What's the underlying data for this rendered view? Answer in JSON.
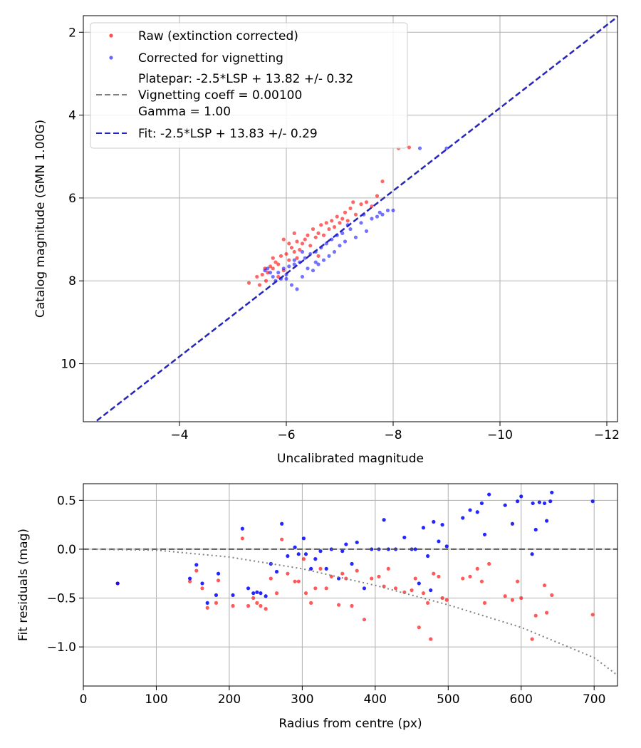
{
  "chart_data": [
    {
      "type": "scatter",
      "xlabel": "Uncalibrated magnitude",
      "ylabel": "Catalog magnitude (GMN 1.00G)",
      "xlim": [
        -2.2,
        -12.2
      ],
      "ylim": [
        11.4,
        1.6
      ],
      "grid": true,
      "xticks": [
        -4,
        -6,
        -8,
        -10,
        -12
      ],
      "xtick_labels": [
        "−4",
        "−6",
        "−8",
        "−10",
        "−12"
      ],
      "yticks": [
        2,
        4,
        6,
        8,
        10
      ],
      "ytick_labels": [
        "2",
        "4",
        "6",
        "8",
        "10"
      ],
      "legend_position": "top-left",
      "legend": [
        {
          "label": "Raw (extinction corrected)",
          "marker": "dot",
          "color": "#ff0000"
        },
        {
          "label": "Corrected for vignetting",
          "marker": "dot",
          "color": "#0000ff"
        },
        {
          "label": [
            "Platepar: -2.5*LSP + 13.82 +/- 0.32",
            "Vignetting coeff = 0.00100",
            "Gamma = 1.00"
          ],
          "marker": "dashed-line",
          "color": "#7f7f7f"
        },
        {
          "label": "Fit: -2.5*LSP + 13.83 +/- 0.29",
          "marker": "dashed-line",
          "color": "#2222cc"
        }
      ],
      "lines": [
        {
          "name": "Platepar",
          "slope": 1.0,
          "intercept": 13.82,
          "color": "#7f7f7f"
        },
        {
          "name": "Fit",
          "slope": 1.0,
          "intercept": 13.83,
          "color": "#2222cc"
        }
      ],
      "series": [
        {
          "name": "Raw (extinction corrected)",
          "color": "#ff0000",
          "points": [
            [
              -5.3,
              8.05
            ],
            [
              -5.45,
              7.9
            ],
            [
              -5.5,
              8.1
            ],
            [
              -5.55,
              7.85
            ],
            [
              -5.6,
              7.7
            ],
            [
              -5.62,
              8.0
            ],
            [
              -5.65,
              7.8
            ],
            [
              -5.7,
              7.65
            ],
            [
              -5.75,
              7.7
            ],
            [
              -5.8,
              7.55
            ],
            [
              -5.85,
              7.6
            ],
            [
              -5.9,
              7.4
            ],
            [
              -5.95,
              7.75
            ],
            [
              -6.0,
              7.35
            ],
            [
              -6.05,
              7.5
            ],
            [
              -6.1,
              7.2
            ],
            [
              -6.15,
              7.3
            ],
            [
              -6.2,
              7.05
            ],
            [
              -6.25,
              7.25
            ],
            [
              -6.3,
              7.1
            ],
            [
              -6.35,
              7.0
            ],
            [
              -6.4,
              6.9
            ],
            [
              -6.45,
              7.15
            ],
            [
              -6.5,
              6.75
            ],
            [
              -6.55,
              6.95
            ],
            [
              -6.6,
              6.85
            ],
            [
              -6.65,
              6.65
            ],
            [
              -6.7,
              6.9
            ],
            [
              -6.75,
              6.6
            ],
            [
              -6.8,
              6.75
            ],
            [
              -6.85,
              6.55
            ],
            [
              -6.9,
              6.7
            ],
            [
              -6.95,
              6.45
            ],
            [
              -7.0,
              6.6
            ],
            [
              -7.05,
              6.5
            ],
            [
              -7.1,
              6.35
            ],
            [
              -7.15,
              6.55
            ],
            [
              -7.2,
              6.25
            ],
            [
              -7.3,
              6.4
            ],
            [
              -7.4,
              6.15
            ],
            [
              -7.5,
              6.1
            ],
            [
              -7.6,
              6.2
            ],
            [
              -7.7,
              5.95
            ],
            [
              -7.8,
              5.6
            ],
            [
              -8.1,
              4.8
            ],
            [
              -8.3,
              4.78
            ],
            [
              -6.2,
              7.45
            ],
            [
              -5.95,
              7.0
            ],
            [
              -6.6,
              7.4
            ],
            [
              -5.75,
              7.45
            ],
            [
              -6.15,
              6.85
            ],
            [
              -7.25,
              6.1
            ],
            [
              -6.05,
              7.1
            ],
            [
              -5.85,
              7.9
            ]
          ]
        },
        {
          "name": "Corrected for vignetting",
          "color": "#0000ff",
          "points": [
            [
              -5.6,
              7.75
            ],
            [
              -5.7,
              7.8
            ],
            [
              -5.8,
              8.0
            ],
            [
              -5.9,
              7.95
            ],
            [
              -5.95,
              7.7
            ],
            [
              -6.0,
              7.85
            ],
            [
              -6.05,
              7.65
            ],
            [
              -6.1,
              8.1
            ],
            [
              -6.15,
              7.6
            ],
            [
              -6.2,
              8.2
            ],
            [
              -6.25,
              7.55
            ],
            [
              -6.3,
              7.9
            ],
            [
              -6.35,
              7.45
            ],
            [
              -6.4,
              7.7
            ],
            [
              -6.45,
              7.35
            ],
            [
              -6.5,
              7.75
            ],
            [
              -6.55,
              7.3
            ],
            [
              -6.6,
              7.6
            ],
            [
              -6.65,
              7.2
            ],
            [
              -6.7,
              7.5
            ],
            [
              -6.75,
              7.1
            ],
            [
              -6.8,
              7.4
            ],
            [
              -6.85,
              7.0
            ],
            [
              -6.9,
              7.3
            ],
            [
              -6.95,
              6.9
            ],
            [
              -7.0,
              7.15
            ],
            [
              -7.05,
              6.85
            ],
            [
              -7.1,
              7.05
            ],
            [
              -7.2,
              6.75
            ],
            [
              -7.3,
              6.95
            ],
            [
              -7.4,
              6.6
            ],
            [
              -7.5,
              6.8
            ],
            [
              -7.6,
              6.5
            ],
            [
              -7.7,
              6.45
            ],
            [
              -7.75,
              6.35
            ],
            [
              -7.8,
              6.4
            ],
            [
              -7.9,
              6.3
            ],
            [
              -8.0,
              6.3
            ],
            [
              -8.5,
              4.8
            ],
            [
              -9.0,
              4.8
            ],
            [
              -6.0,
              7.95
            ],
            [
              -5.75,
              7.9
            ],
            [
              -6.3,
              7.3
            ],
            [
              -7.15,
              6.65
            ],
            [
              -6.15,
              7.5
            ],
            [
              -5.85,
              7.8
            ],
            [
              -6.55,
              7.55
            ],
            [
              -7.45,
              6.4
            ],
            [
              -5.65,
              7.7
            ]
          ]
        }
      ]
    },
    {
      "type": "scatter",
      "xlabel": "Radius from centre (px)",
      "ylabel": "Fit residuals (mag)",
      "xlim": [
        0,
        732
      ],
      "ylim": [
        -1.4,
        0.67
      ],
      "grid": true,
      "xticks": [
        0,
        100,
        200,
        300,
        400,
        500,
        600,
        700
      ],
      "xtick_labels": [
        "0",
        "100",
        "200",
        "300",
        "400",
        "500",
        "600",
        "700"
      ],
      "yticks": [
        0.5,
        0.0,
        -0.5,
        -1.0
      ],
      "ytick_labels": [
        "0.5",
        "0.0",
        "−0.5",
        "−1.0"
      ],
      "hlines": [
        {
          "y": 0,
          "color": "#555555",
          "style": "dashed"
        }
      ],
      "curves": [
        {
          "name": "Vignetting curve",
          "color": "#7f7f7f",
          "style": "dotted",
          "x": [
            0,
            100,
            200,
            300,
            400,
            500,
            600,
            700,
            732
          ],
          "y": [
            0.0,
            -0.01,
            -0.08,
            -0.2,
            -0.37,
            -0.57,
            -0.8,
            -1.11,
            -1.29
          ]
        }
      ],
      "series": [
        {
          "name": "Raw residuals",
          "color": "#ff0000",
          "points": [
            [
              47,
              -0.35
            ],
            [
              146,
              -0.33
            ],
            [
              155,
              -0.22
            ],
            [
              163,
              -0.4
            ],
            [
              170,
              -0.6
            ],
            [
              182,
              -0.55
            ],
            [
              185,
              -0.32
            ],
            [
              205,
              -0.58
            ],
            [
              218,
              0.11
            ],
            [
              226,
              -0.58
            ],
            [
              233,
              -0.5
            ],
            [
              238,
              -0.55
            ],
            [
              243,
              -0.58
            ],
            [
              250,
              -0.61
            ],
            [
              257,
              -0.3
            ],
            [
              265,
              -0.45
            ],
            [
              272,
              0.1
            ],
            [
              280,
              -0.25
            ],
            [
              290,
              -0.33
            ],
            [
              295,
              -0.33
            ],
            [
              302,
              -0.1
            ],
            [
              305,
              -0.45
            ],
            [
              312,
              -0.55
            ],
            [
              318,
              -0.4
            ],
            [
              325,
              -0.2
            ],
            [
              333,
              -0.4
            ],
            [
              340,
              -0.28
            ],
            [
              350,
              -0.57
            ],
            [
              355,
              -0.25
            ],
            [
              360,
              -0.3
            ],
            [
              368,
              -0.58
            ],
            [
              375,
              -0.22
            ],
            [
              385,
              -0.72
            ],
            [
              395,
              -0.3
            ],
            [
              405,
              -0.28
            ],
            [
              412,
              -0.38
            ],
            [
              418,
              -0.2
            ],
            [
              428,
              -0.4
            ],
            [
              440,
              -0.44
            ],
            [
              450,
              -0.42
            ],
            [
              455,
              -0.3
            ],
            [
              460,
              -0.8
            ],
            [
              466,
              -0.45
            ],
            [
              472,
              -0.55
            ],
            [
              476,
              -0.92
            ],
            [
              480,
              -0.25
            ],
            [
              487,
              -0.28
            ],
            [
              492,
              -0.5
            ],
            [
              498,
              -0.52
            ],
            [
              520,
              -0.3
            ],
            [
              530,
              -0.28
            ],
            [
              540,
              -0.2
            ],
            [
              546,
              -0.33
            ],
            [
              550,
              -0.55
            ],
            [
              556,
              -0.15
            ],
            [
              578,
              -0.48
            ],
            [
              588,
              -0.52
            ],
            [
              595,
              -0.33
            ],
            [
              600,
              -0.5
            ],
            [
              615,
              -0.92
            ],
            [
              620,
              -0.68
            ],
            [
              632,
              -0.37
            ],
            [
              635,
              -0.65
            ],
            [
              642,
              -0.47
            ],
            [
              698,
              -0.67
            ]
          ]
        },
        {
          "name": "Vignetting-corrected residuals",
          "color": "#0000ff",
          "points": [
            [
              47,
              -0.35
            ],
            [
              146,
              -0.3
            ],
            [
              155,
              -0.16
            ],
            [
              163,
              -0.35
            ],
            [
              170,
              -0.55
            ],
            [
              182,
              -0.47
            ],
            [
              185,
              -0.25
            ],
            [
              205,
              -0.47
            ],
            [
              218,
              0.21
            ],
            [
              226,
              -0.4
            ],
            [
              233,
              -0.45
            ],
            [
              238,
              -0.44
            ],
            [
              243,
              -0.45
            ],
            [
              250,
              -0.48
            ],
            [
              257,
              -0.15
            ],
            [
              265,
              -0.23
            ],
            [
              272,
              0.26
            ],
            [
              280,
              -0.07
            ],
            [
              290,
              0.02
            ],
            [
              295,
              -0.05
            ],
            [
              302,
              0.11
            ],
            [
              305,
              -0.05
            ],
            [
              312,
              -0.2
            ],
            [
              318,
              -0.1
            ],
            [
              325,
              -0.02
            ],
            [
              333,
              -0.2
            ],
            [
              340,
              0.0
            ],
            [
              350,
              -0.3
            ],
            [
              355,
              -0.02
            ],
            [
              360,
              0.05
            ],
            [
              368,
              -0.15
            ],
            [
              375,
              0.07
            ],
            [
              385,
              -0.4
            ],
            [
              395,
              0.0
            ],
            [
              405,
              0.0
            ],
            [
              412,
              0.3
            ],
            [
              418,
              0.0
            ],
            [
              428,
              0.0
            ],
            [
              440,
              0.12
            ],
            [
              450,
              0.0
            ],
            [
              455,
              0.0
            ],
            [
              460,
              -0.35
            ],
            [
              466,
              0.22
            ],
            [
              472,
              -0.07
            ],
            [
              476,
              -0.42
            ],
            [
              480,
              0.28
            ],
            [
              487,
              0.08
            ],
            [
              492,
              0.25
            ],
            [
              498,
              0.03
            ],
            [
              520,
              0.32
            ],
            [
              530,
              0.4
            ],
            [
              540,
              0.38
            ],
            [
              546,
              0.47
            ],
            [
              550,
              0.15
            ],
            [
              556,
              0.56
            ],
            [
              578,
              0.45
            ],
            [
              588,
              0.26
            ],
            [
              595,
              0.49
            ],
            [
              600,
              0.54
            ],
            [
              615,
              -0.05
            ],
            [
              620,
              0.2
            ],
            [
              632,
              0.47
            ],
            [
              635,
              0.29
            ],
            [
              642,
              0.58
            ],
            [
              698,
              0.49
            ],
            [
              616,
              0.47
            ],
            [
              625,
              0.48
            ],
            [
              640,
              0.49
            ]
          ]
        }
      ]
    }
  ]
}
